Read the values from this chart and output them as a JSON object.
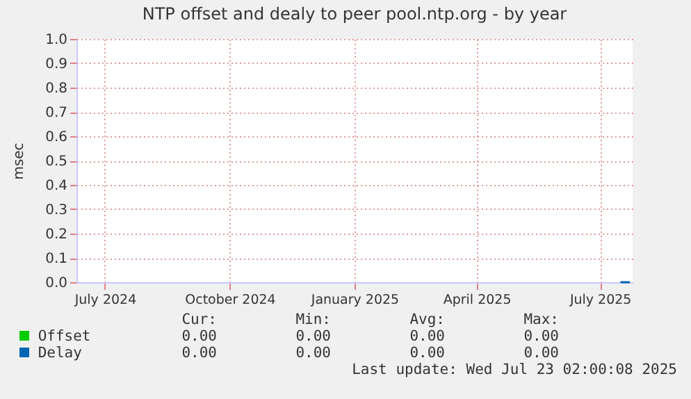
{
  "chart_data": {
    "type": "line",
    "title": "NTP offset and dealy to peer pool.ntp.org - by year",
    "ylabel": "msec",
    "xlim": [
      "2024-06-10",
      "2025-07-25"
    ],
    "xticks": [
      {
        "value": "2024-07-01",
        "label": "July 2024"
      },
      {
        "value": "2024-10-01",
        "label": "October 2024"
      },
      {
        "value": "2025-01-01",
        "label": "January 2025"
      },
      {
        "value": "2025-04-01",
        "label": "April 2025"
      },
      {
        "value": "2025-07-01",
        "label": "July 2025"
      }
    ],
    "ylim": [
      0,
      1
    ],
    "yticks": [
      {
        "value": 0,
        "label": "0.0"
      },
      {
        "value": 0.1,
        "label": "0.1"
      },
      {
        "value": 0.2,
        "label": "0.2"
      },
      {
        "value": 0.3,
        "label": "0.3"
      },
      {
        "value": 0.4,
        "label": "0.4"
      },
      {
        "value": 0.5,
        "label": "0.5"
      },
      {
        "value": 0.6,
        "label": "0.6"
      },
      {
        "value": 0.7,
        "label": "0.7"
      },
      {
        "value": 0.8,
        "label": "0.8"
      },
      {
        "value": 0.9,
        "label": "0.9"
      },
      {
        "value": 1,
        "label": "1.0"
      }
    ],
    "grid": true,
    "legend": "bottom",
    "series": [
      {
        "name": "Offset",
        "color": "#00cc00"
      },
      {
        "name": "Delay",
        "color": "#0066b3",
        "x": [
          "2025-07-16",
          "2025-07-23"
        ],
        "values": [
          0,
          0
        ]
      }
    ],
    "annotations": [
      "Cur:",
      "Min:",
      "Avg:",
      "Max:",
      "0.00",
      "0.00",
      "0.00",
      "0.00",
      "0.00",
      "0.00",
      "0.00",
      "0.00",
      "Last update: Wed Jul 23 02:00:08 2025"
    ]
  }
}
